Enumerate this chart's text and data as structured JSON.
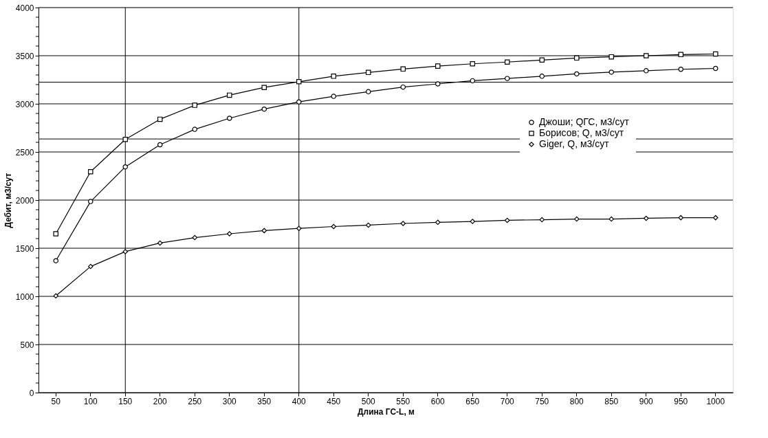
{
  "chart_data": {
    "type": "line",
    "xlabel": "Длина ГС-L, м",
    "ylabel": "Дебит, м3/сут",
    "categories": [
      "50",
      "100",
      "150",
      "200",
      "250",
      "300",
      "350",
      "400",
      "450",
      "500",
      "550",
      "600",
      "650",
      "700",
      "750",
      "800",
      "850",
      "900",
      "950",
      "1000"
    ],
    "series": [
      {
        "name": "Джоши; QГС, м3/сут",
        "color": "#000000",
        "marker": "circle",
        "values": [
          1370,
          1985,
          2345,
          2575,
          2735,
          2850,
          2945,
          3020,
          3078,
          3126,
          3174,
          3207,
          3240,
          3263,
          3287,
          3311,
          3329,
          3344,
          3359,
          3368
        ]
      },
      {
        "name": "Борисов; Q, м3/сут",
        "color": "#000000",
        "marker": "square",
        "values": [
          1650,
          2295,
          2630,
          2840,
          2985,
          3090,
          3170,
          3230,
          3287,
          3326,
          3362,
          3392,
          3416,
          3434,
          3455,
          3476,
          3488,
          3500,
          3512,
          3518
        ]
      },
      {
        "name": "Giger,  Q, м3/сут",
        "color": "#000000",
        "marker": "diamond",
        "values": [
          1005,
          1310,
          1465,
          1554,
          1610,
          1650,
          1683,
          1706,
          1725,
          1740,
          1757,
          1769,
          1778,
          1790,
          1796,
          1803,
          1803,
          1811,
          1817,
          1817
        ]
      }
    ],
    "ylim": [
      0,
      4000
    ],
    "yticks": [
      0,
      {
        "value": 100,
        "label": null
      },
      {
        "value": 200,
        "label": null
      },
      {
        "value": 300,
        "label": null
      },
      {
        "value": 400,
        "label": null
      },
      500,
      {
        "value": 600,
        "label": null
      },
      {
        "value": 700,
        "label": null
      },
      {
        "value": 800,
        "label": null
      },
      {
        "value": 900,
        "label": null
      },
      1000,
      {
        "value": 1100,
        "label": null
      },
      {
        "value": 1200,
        "label": null
      },
      {
        "value": 1300,
        "label": null
      },
      {
        "value": 1400,
        "label": null
      },
      1500,
      {
        "value": 1600,
        "label": null
      },
      {
        "value": 1700,
        "label": null
      },
      {
        "value": 1800,
        "label": null
      },
      {
        "value": 1900,
        "label": null
      },
      2000,
      {
        "value": 2100,
        "label": null
      },
      {
        "value": 2200,
        "label": null
      },
      {
        "value": 2300,
        "label": null
      },
      {
        "value": 2400,
        "label": null
      },
      2500,
      {
        "value": 2600,
        "label": null
      },
      {
        "value": 2700,
        "label": null
      },
      {
        "value": 2800,
        "label": null
      },
      {
        "value": 2900,
        "label": null
      },
      3000,
      {
        "value": 3100,
        "label": null
      },
      {
        "value": 3200,
        "label": null
      },
      {
        "value": 3300,
        "label": null
      },
      {
        "value": 3400,
        "label": null
      },
      3500,
      {
        "value": 3600,
        "label": null
      },
      {
        "value": 3700,
        "label": null
      },
      {
        "value": 3800,
        "label": null
      },
      {
        "value": 3900,
        "label": null
      },
      4000
    ],
    "ref_lines": [
      {
        "axis": "x",
        "value": "150",
        "color": "#000000"
      },
      {
        "axis": "x",
        "value": "400",
        "color": "#000000"
      },
      {
        "axis": "y",
        "value": 2635,
        "color": "#000000"
      },
      {
        "axis": "y",
        "value": 3225,
        "color": "#000000"
      }
    ],
    "grid": "y",
    "legend": "right",
    "line_style": "solid"
  }
}
